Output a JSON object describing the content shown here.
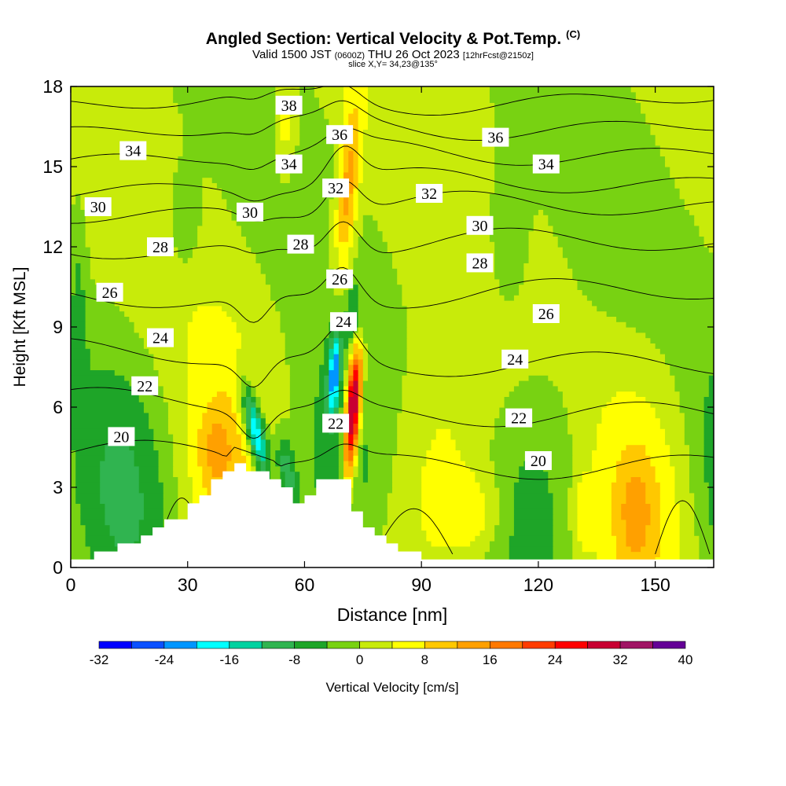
{
  "title": {
    "main": "Angled Section: Vertical Velocity & Pot.Temp.",
    "copyright": "(C)",
    "valid_prefix": "Valid 1500 JST",
    "valid_utc": "(0600Z)",
    "valid_date": "THU 26 Oct 2023",
    "forecast": "[12hrFcst@2150z]",
    "slice": "slice X,Y= 34,23@135°"
  },
  "chart_data": {
    "type": "heatmap",
    "xlabel": "Distance [nm]",
    "ylabel": "Height [Kft MSL]",
    "xlim": [
      0,
      165
    ],
    "ylim": [
      0,
      18
    ],
    "xticks": [
      0,
      30,
      60,
      90,
      120,
      150
    ],
    "yticks": [
      0,
      3,
      6,
      9,
      12,
      15,
      18
    ],
    "colorbar": {
      "label": "Vertical Velocity [cm/s]",
      "ticks": [
        -32,
        -24,
        -16,
        -8,
        0,
        8,
        16,
        24,
        32,
        40
      ],
      "bins": [
        {
          "from": -32,
          "to": -28,
          "color": "#0000ff"
        },
        {
          "from": -28,
          "to": -24,
          "color": "#0a50ff"
        },
        {
          "from": -24,
          "to": -20,
          "color": "#0096ff"
        },
        {
          "from": -20,
          "to": -16,
          "color": "#00ffff"
        },
        {
          "from": -16,
          "to": -12,
          "color": "#00d2a0"
        },
        {
          "from": -12,
          "to": -8,
          "color": "#30b450"
        },
        {
          "from": -8,
          "to": -4,
          "color": "#1ea528"
        },
        {
          "from": -4,
          "to": 0,
          "color": "#78d212"
        },
        {
          "from": 0,
          "to": 4,
          "color": "#c8eb0a"
        },
        {
          "from": 4,
          "to": 8,
          "color": "#ffff00"
        },
        {
          "from": 8,
          "to": 12,
          "color": "#ffc800"
        },
        {
          "from": 12,
          "to": 16,
          "color": "#ffa000"
        },
        {
          "from": 16,
          "to": 20,
          "color": "#ff7800"
        },
        {
          "from": 20,
          "to": 24,
          "color": "#ff3c00"
        },
        {
          "from": 24,
          "to": 28,
          "color": "#ff0000"
        },
        {
          "from": 28,
          "to": 32,
          "color": "#c80032"
        },
        {
          "from": 32,
          "to": 36,
          "color": "#a01464"
        },
        {
          "from": 36,
          "to": 40,
          "color": "#640096"
        }
      ]
    },
    "theta_contours": [
      {
        "value": 20,
        "base_height": 4.3
      },
      {
        "value": 22,
        "base_height": 6.2
      },
      {
        "value": 24,
        "base_height": 8.0
      },
      {
        "value": 26,
        "base_height": 10.0
      },
      {
        "value": 28,
        "base_height": 11.9
      },
      {
        "value": 30,
        "base_height": 13.3
      },
      {
        "value": 32,
        "base_height": 14.2
      },
      {
        "value": 34,
        "base_height": 15.3
      },
      {
        "value": 36,
        "base_height": 16.3
      },
      {
        "value": 38,
        "base_height": 17.3
      }
    ],
    "contour_labels": [
      {
        "text": "20",
        "x": 13,
        "y": 4.9
      },
      {
        "text": "20",
        "x": 120,
        "y": 4.0
      },
      {
        "text": "22",
        "x": 19,
        "y": 6.8
      },
      {
        "text": "22",
        "x": 68,
        "y": 5.4
      },
      {
        "text": "22",
        "x": 115,
        "y": 5.6
      },
      {
        "text": "24",
        "x": 23,
        "y": 8.6
      },
      {
        "text": "24",
        "x": 70,
        "y": 9.2
      },
      {
        "text": "24",
        "x": 114,
        "y": 7.8
      },
      {
        "text": "26",
        "x": 10,
        "y": 10.3
      },
      {
        "text": "26",
        "x": 69,
        "y": 10.8
      },
      {
        "text": "26",
        "x": 122,
        "y": 9.5
      },
      {
        "text": "28",
        "x": 23,
        "y": 12.0
      },
      {
        "text": "28",
        "x": 59,
        "y": 12.1
      },
      {
        "text": "28",
        "x": 105,
        "y": 11.4
      },
      {
        "text": "30",
        "x": 7,
        "y": 13.5
      },
      {
        "text": "30",
        "x": 46,
        "y": 13.3
      },
      {
        "text": "30",
        "x": 105,
        "y": 12.8
      },
      {
        "text": "32",
        "x": 68,
        "y": 14.2
      },
      {
        "text": "32",
        "x": 92,
        "y": 14.0
      },
      {
        "text": "34",
        "x": 16,
        "y": 15.6
      },
      {
        "text": "34",
        "x": 56,
        "y": 15.1
      },
      {
        "text": "34",
        "x": 122,
        "y": 15.1
      },
      {
        "text": "36",
        "x": 69,
        "y": 16.2
      },
      {
        "text": "36",
        "x": 109,
        "y": 16.1
      },
      {
        "text": "38",
        "x": 56,
        "y": 17.3
      }
    ],
    "terrain": [
      [
        0,
        0.3
      ],
      [
        10,
        0.6
      ],
      [
        16,
        0.9
      ],
      [
        20,
        1.2
      ],
      [
        22,
        1.6
      ],
      [
        30,
        1.9
      ],
      [
        33,
        2.6
      ],
      [
        36,
        3.0
      ],
      [
        39,
        3.4
      ],
      [
        42,
        3.9
      ],
      [
        52,
        3.4
      ],
      [
        55,
        3.0
      ],
      [
        58,
        2.3
      ],
      [
        62,
        2.6
      ],
      [
        65,
        3.6
      ],
      [
        71,
        3.2
      ],
      [
        74,
        2.0
      ],
      [
        77,
        1.4
      ],
      [
        80,
        1.1
      ],
      [
        83,
        0.8
      ],
      [
        87,
        0.6
      ],
      [
        90,
        0.3
      ],
      [
        165,
        0.3
      ]
    ]
  }
}
